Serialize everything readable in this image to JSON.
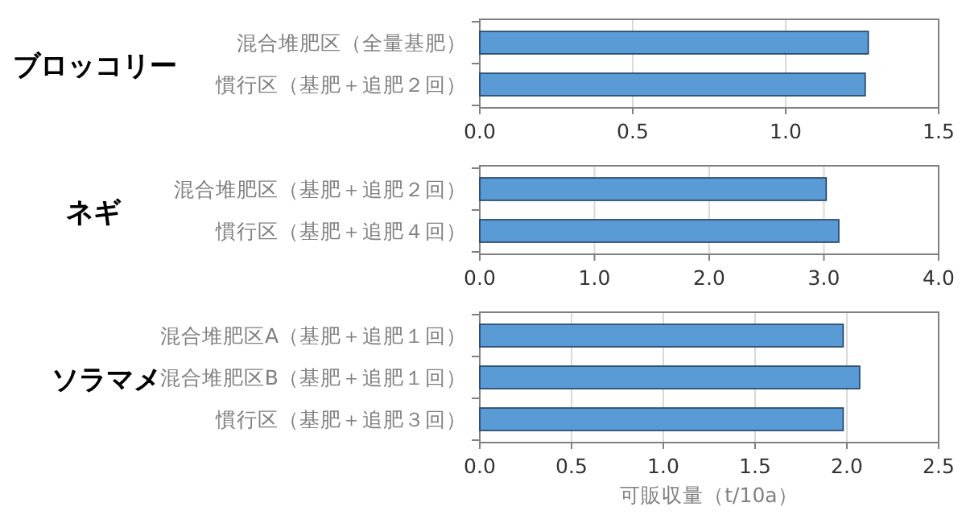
{
  "chart_data": [
    {
      "type": "bar",
      "orientation": "horizontal",
      "title": "ブロッコリー",
      "categories": [
        "混合堆肥区（全量基肥）",
        "慣行区（基肥＋追肥２回）"
      ],
      "values": [
        1.27,
        1.26
      ],
      "color": "#5b9bd5",
      "xlim": [
        0,
        1.5
      ],
      "xticks": [
        {
          "value": 0,
          "label": "0.0"
        },
        {
          "value": 0.5,
          "label": "0.5"
        },
        {
          "value": 1,
          "label": "1.0"
        },
        {
          "value": 1.5,
          "label": "1.5"
        }
      ],
      "grid": "x"
    },
    {
      "type": "bar",
      "orientation": "horizontal",
      "title": "ネギ",
      "categories": [
        "混合堆肥区（基肥＋追肥２回）",
        "慣行区（基肥＋追肥４回）"
      ],
      "values": [
        3.02,
        3.13
      ],
      "color": "#5b9bd5",
      "xlim": [
        0,
        4
      ],
      "xticks": [
        {
          "value": 0,
          "label": "0.0"
        },
        {
          "value": 1,
          "label": "1.0"
        },
        {
          "value": 2,
          "label": "2.0"
        },
        {
          "value": 3,
          "label": "3.0"
        },
        {
          "value": 4,
          "label": "4.0"
        }
      ],
      "grid": "x"
    },
    {
      "type": "bar",
      "orientation": "horizontal",
      "title": "ソラマメ",
      "xlabel": "可販収量（t/10a）",
      "categories": [
        "混合堆肥区A（基肥＋追肥１回）",
        "混合堆肥区B（基肥＋追肥１回）",
        "慣行区（基肥＋追肥３回）"
      ],
      "values": [
        1.98,
        2.07,
        1.98
      ],
      "color": "#5b9bd5",
      "xlim": [
        0,
        2.5
      ],
      "xticks": [
        {
          "value": 0,
          "label": "0.0"
        },
        {
          "value": 0.5,
          "label": "0.5"
        },
        {
          "value": 1,
          "label": "1.0"
        },
        {
          "value": 1.5,
          "label": "1.5"
        },
        {
          "value": 2,
          "label": "2.0"
        },
        {
          "value": 2.5,
          "label": "2.5"
        }
      ],
      "grid": "x"
    }
  ]
}
